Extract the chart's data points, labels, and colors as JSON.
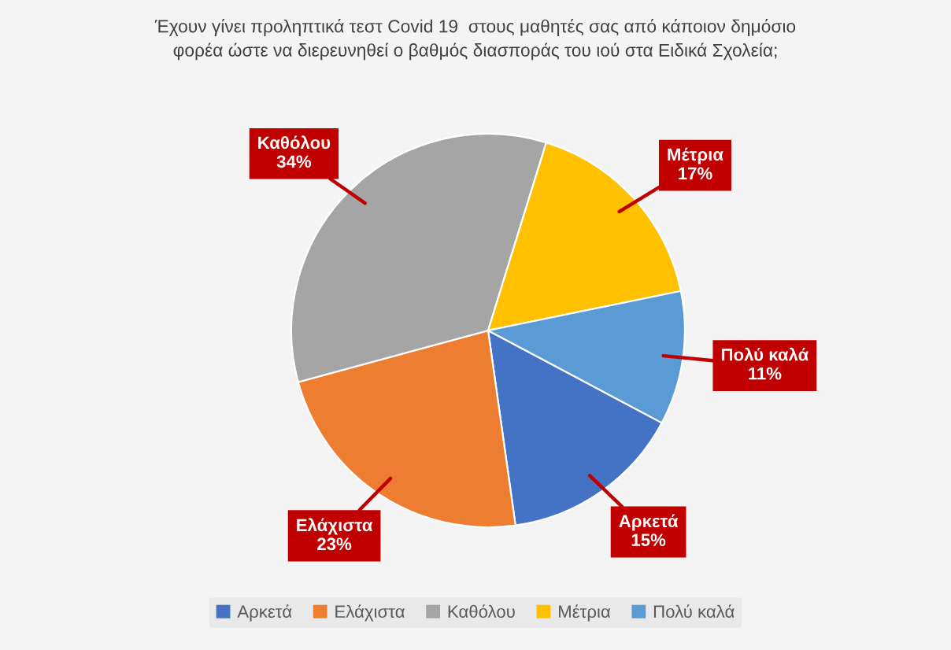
{
  "chart_data": {
    "type": "pie",
    "title": "Έχουν γίνει προληπτικά τεστ Covid 19  στους μαθητές σας από κάποιον δημόσιο\nφορέα ώστε να διερευνηθεί ο βαθμός διασποράς του ιού στα Ειδικά Σχολεία;",
    "categories": [
      "Αρκετά",
      "Ελάχιστα",
      "Καθόλου",
      "Μέτρια",
      "Πολύ καλά"
    ],
    "values": [
      15,
      23,
      34,
      17,
      11
    ],
    "colors": [
      "#4472c4",
      "#ed7d31",
      "#a5a5a5",
      "#ffc000",
      "#5b9bd5"
    ],
    "value_labels": [
      "15%",
      "23%",
      "34%",
      "17%",
      "11%"
    ],
    "legend": "bottom"
  }
}
